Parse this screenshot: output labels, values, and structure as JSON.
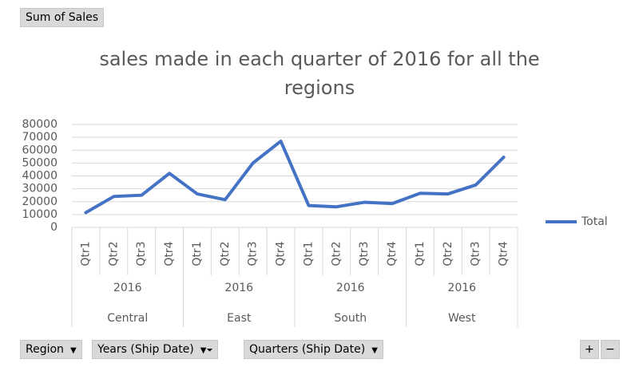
{
  "value_field_button": "Sum of Sales",
  "axis_field_buttons": [
    "Region",
    "Years (Ship Date)",
    "Quarters (Ship Date)"
  ],
  "zoom_buttons": [
    "+",
    "−"
  ],
  "chart_data": {
    "type": "line",
    "title": "sales made in each quarter of 2016 for all the regions",
    "categories": [
      "Qtr1",
      "Qtr2",
      "Qtr3",
      "Qtr4",
      "Qtr1",
      "Qtr2",
      "Qtr3",
      "Qtr4",
      "Qtr1",
      "Qtr2",
      "Qtr3",
      "Qtr4",
      "Qtr1",
      "Qtr2",
      "Qtr3",
      "Qtr4"
    ],
    "years": [
      "2016",
      "2016",
      "2016",
      "2016"
    ],
    "regions": [
      "Central",
      "East",
      "South",
      "West"
    ],
    "series": [
      {
        "name": "Total",
        "color": "#4472c4",
        "values": [
          11500,
          24000,
          25000,
          42000,
          26000,
          21500,
          50000,
          67000,
          17000,
          16000,
          19500,
          18500,
          26500,
          26000,
          33000,
          54500
        ]
      }
    ],
    "ylim": [
      0,
      80000
    ],
    "yticks": [
      0,
      10000,
      20000,
      30000,
      40000,
      50000,
      60000,
      70000,
      80000
    ],
    "grid": true,
    "legend": "right"
  }
}
